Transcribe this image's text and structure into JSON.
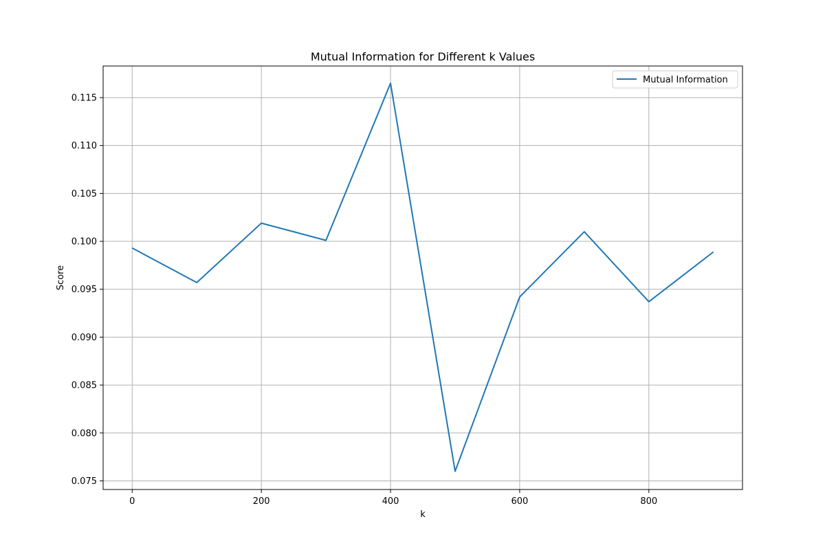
{
  "chart_data": {
    "type": "line",
    "title": "Mutual Information for Different k Values",
    "xlabel": "k",
    "ylabel": "Score",
    "x": [
      0,
      100,
      200,
      300,
      400,
      500,
      600,
      700,
      800,
      900
    ],
    "series": [
      {
        "name": "Mutual Information",
        "color": "#1f77b4",
        "values": [
          0.0993,
          0.0957,
          0.1019,
          0.1001,
          0.1165,
          0.076,
          0.0942,
          0.101,
          0.0937,
          0.0989
        ]
      }
    ],
    "xlim": [
      -45,
      945
    ],
    "ylim": [
      0.0741,
      0.1183
    ],
    "xticks": [
      0,
      200,
      400,
      600,
      800
    ],
    "xtick_labels": [
      "0",
      "200",
      "400",
      "600",
      "800"
    ],
    "yticks": [
      0.075,
      0.08,
      0.085,
      0.09,
      0.095,
      0.1,
      0.105,
      0.11,
      0.115
    ],
    "ytick_labels": [
      "0.075",
      "0.080",
      "0.085",
      "0.090",
      "0.095",
      "0.100",
      "0.105",
      "0.110",
      "0.115"
    ],
    "grid": true,
    "legend_position": "top-right"
  }
}
